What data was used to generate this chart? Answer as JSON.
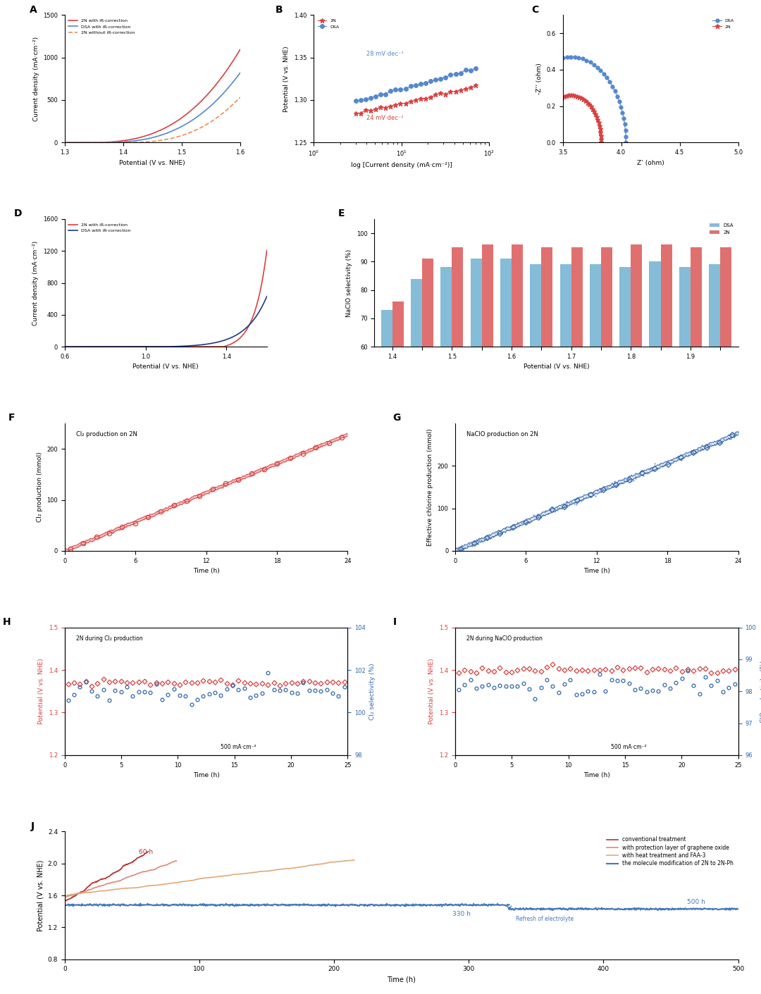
{
  "panel_A": {
    "title": "A",
    "xlabel": "Potential (V vs. NHE)",
    "ylabel": "Current density (mA·cm⁻²)",
    "xlim": [
      1.3,
      1.6
    ],
    "ylim": [
      0,
      1500
    ],
    "yticks": [
      0,
      500,
      1000,
      1500
    ],
    "xticks": [
      1.3,
      1.4,
      1.5,
      1.6
    ],
    "lines": [
      {
        "label": "2N with iR-correction",
        "color": "#d94040",
        "linestyle": "-",
        "lw": 1.2
      },
      {
        "label": "2N without iR-correction",
        "color": "#e8905a",
        "linestyle": "--",
        "lw": 1.2
      },
      {
        "label": "DSA with iR-correction",
        "color": "#5588cc",
        "linestyle": "-",
        "lw": 1.2
      }
    ]
  },
  "panel_B": {
    "title": "B",
    "xlabel": "log [Current density (mA·cm⁻²)]",
    "ylabel": "Potential (V vs. NHE)",
    "xlim_log": [
      1,
      100
    ],
    "ylim": [
      1.25,
      1.4
    ],
    "yticks": [
      1.25,
      1.3,
      1.35,
      1.4
    ],
    "annotation_2N": "24 mV·dec⁻¹",
    "annotation_DSA": "28 mV·dec⁻¹",
    "lines": [
      {
        "label": "2N",
        "color": "#d94040",
        "marker": "*",
        "ms": 5
      },
      {
        "label": "DSA",
        "color": "#5588cc",
        "marker": "o",
        "ms": 4
      }
    ]
  },
  "panel_C": {
    "title": "C",
    "xlabel": "Z’ (ohm)",
    "ylabel": "-Z’’ (ohm)",
    "xlim": [
      3.5,
      5.0
    ],
    "ylim": [
      0.0,
      0.7
    ],
    "yticks": [
      0.0,
      0.2,
      0.4,
      0.6
    ],
    "xticks": [
      3.5,
      4.0,
      4.5,
      5.0
    ],
    "lines": [
      {
        "label": "DSA",
        "color": "#5588cc",
        "marker": "o",
        "ms": 3.5
      },
      {
        "label": "2N",
        "color": "#d94040",
        "marker": "*",
        "ms": 5
      }
    ]
  },
  "panel_D": {
    "title": "D",
    "xlabel": "Potential (V vs. NHE)",
    "ylabel": "Current density (mA·cm⁻²)",
    "xlim": [
      0.6,
      1.6
    ],
    "ylim": [
      0,
      1600
    ],
    "yticks": [
      0,
      400,
      800,
      1200,
      1600
    ],
    "xticks": [
      0.6,
      1.0,
      1.4
    ],
    "lines": [
      {
        "label": "2N with iR-correction",
        "color": "#d94040",
        "linestyle": "-",
        "lw": 1.2
      },
      {
        "label": "DSA with iR-correction",
        "color": "#1a3a8a",
        "linestyle": "-",
        "lw": 1.2
      }
    ]
  },
  "panel_E": {
    "title": "E",
    "xlabel": "Potential (V vs. NHE)",
    "ylabel": "NaClO selectivity (%)",
    "ylim": [
      60,
      105
    ],
    "yticks": [
      60,
      70,
      80,
      90,
      100
    ],
    "potentials": [
      1.4,
      1.45,
      1.5,
      1.55,
      1.6,
      1.65,
      1.7,
      1.75,
      1.8,
      1.85,
      1.9,
      1.95
    ],
    "xticks_labels": [
      "1.4",
      "",
      "1.5",
      "",
      "1.6",
      "",
      "1.7",
      "",
      "1.8",
      "",
      "1.9",
      ""
    ],
    "DSA_values": [
      73,
      84,
      88,
      91,
      91,
      89,
      89,
      89,
      88,
      90,
      88,
      89
    ],
    "N2_values": [
      76,
      91,
      95,
      96,
      96,
      95,
      95,
      95,
      96,
      96,
      95,
      95
    ],
    "DSA_color": "#85bcd8",
    "N2_color": "#e07070"
  },
  "panel_F": {
    "title": "F",
    "xlabel": "Time (h)",
    "ylabel": "Cl₂ production (mmol)",
    "xlim": [
      0,
      24
    ],
    "ylim": [
      0,
      250
    ],
    "yticks": [
      0,
      100,
      200
    ],
    "xticks": [
      0,
      6,
      12,
      18,
      24
    ],
    "annotation": "Cl₂ production on 2N",
    "color": "#d94040"
  },
  "panel_G": {
    "title": "G",
    "xlabel": "Time (h)",
    "ylabel": "Effective chlorine production (mmol)",
    "xlim": [
      0,
      24
    ],
    "ylim": [
      0,
      300
    ],
    "yticks": [
      0,
      100,
      200
    ],
    "xticks": [
      0,
      6,
      12,
      18,
      24
    ],
    "annotation": "NaClO production on 2N",
    "color": "#3366aa"
  },
  "panel_H": {
    "title": "H",
    "xlabel": "Time (h)",
    "ylabel_left": "Potential (V vs. NHE)",
    "ylabel_right": "Cl₂ selectivity (%)",
    "xlim": [
      0,
      25
    ],
    "ylim_left": [
      1.2,
      1.5
    ],
    "ylim_right": [
      98,
      104
    ],
    "yticks_left": [
      1.2,
      1.3,
      1.4,
      1.5
    ],
    "yticks_right": [
      98,
      100,
      102,
      104
    ],
    "pot_level": 1.37,
    "sel_level": 101.0,
    "annotation": "2N during Cl₂ production",
    "annotation2": "500 mA·cm⁻²",
    "color_left": "#d94040",
    "color_right": "#3366aa"
  },
  "panel_I": {
    "title": "I",
    "xlabel": "Time (h)",
    "ylabel_left": "Potential (V vs. NHE)",
    "ylabel_right": "ClO⁻ selectivity (%)",
    "xlim": [
      0,
      25
    ],
    "ylim_left": [
      1.2,
      1.5
    ],
    "ylim_right": [
      96,
      100
    ],
    "yticks_left": [
      1.2,
      1.3,
      1.4,
      1.5
    ],
    "yticks_right": [
      96,
      97,
      98,
      99,
      100
    ],
    "pot_level": 1.4,
    "sel_level": 98.2,
    "annotation": "2N during NaClO production",
    "annotation2": "500 mA·cm⁻²",
    "color_left": "#d94040",
    "color_right": "#3366aa"
  },
  "panel_J": {
    "title": "J",
    "xlabel": "Time (h)",
    "ylabel": "Potential (V vs. NHE)",
    "xlim": [
      0,
      500
    ],
    "ylim": [
      0.8,
      2.4
    ],
    "yticks": [
      0.8,
      1.2,
      1.6,
      2.0,
      2.4
    ],
    "xticks": [
      0,
      100,
      200,
      300,
      400,
      500
    ],
    "lines": [
      {
        "label": "conventional treatment",
        "color": "#b83030",
        "lw": 1.2
      },
      {
        "label": "with protection layer of graphene oxide",
        "color": "#e08878",
        "lw": 1.2
      },
      {
        "label": "with heat treatment and FAA-3",
        "color": "#e0a878",
        "lw": 1.2
      },
      {
        "label": "the molecule modification of 2N to 2N-Ph",
        "color": "#4477bb",
        "lw": 1.5
      }
    ],
    "annotation_60h": "60 h",
    "annotation_330h": "330 h",
    "annotation_500h": "500 h",
    "annotation_refresh": "Refresh of electrolyte"
  }
}
